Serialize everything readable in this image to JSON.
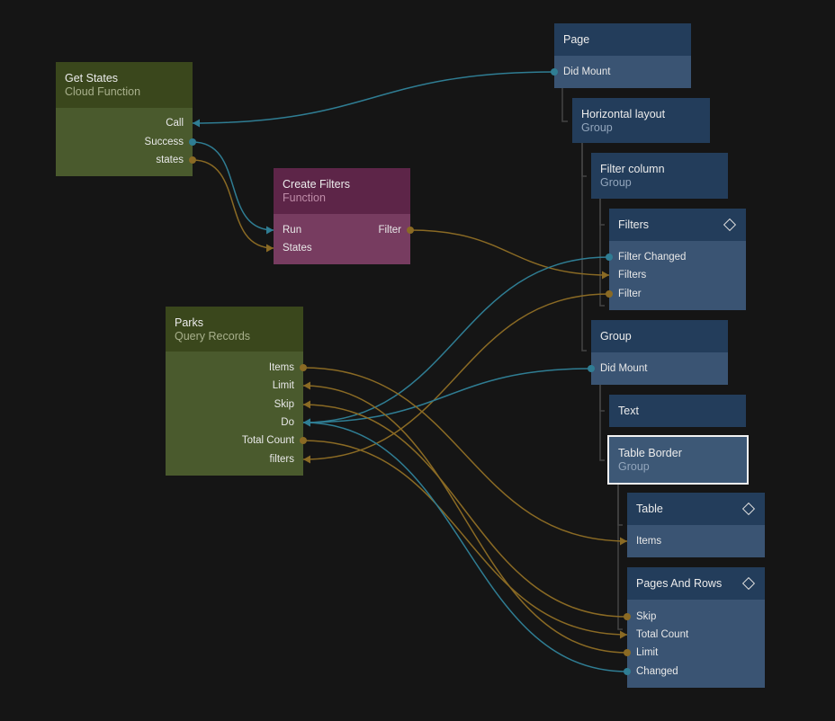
{
  "colors": {
    "signal": "#2f7d93",
    "data": "#8a6a24",
    "tree_line": "#444444"
  },
  "nodes": [
    {
      "id": "get-states",
      "title": "Get States",
      "subtitle": "Cloud Function",
      "theme": "green",
      "ports": [
        {
          "label": "Call",
          "side": "out"
        },
        {
          "label": "Success",
          "side": "out"
        },
        {
          "label": "states",
          "side": "out"
        }
      ]
    },
    {
      "id": "create-filters",
      "title": "Create Filters",
      "subtitle": "Function",
      "theme": "purple",
      "ports": [
        {
          "label": "Run",
          "side": "in"
        },
        {
          "label": "States",
          "side": "in"
        },
        {
          "label": "Filter",
          "side": "out"
        }
      ]
    },
    {
      "id": "parks",
      "title": "Parks",
      "subtitle": "Query Records",
      "theme": "green",
      "ports": [
        {
          "label": "Items",
          "side": "out"
        },
        {
          "label": "Limit",
          "side": "out"
        },
        {
          "label": "Skip",
          "side": "out"
        },
        {
          "label": "Do",
          "side": "out"
        },
        {
          "label": "Total Count",
          "side": "out"
        },
        {
          "label": "filters",
          "side": "out"
        }
      ]
    },
    {
      "id": "page",
      "title": "Page",
      "subtitle": "",
      "theme": "blue",
      "ports": [
        {
          "label": "Did Mount",
          "side": "in"
        }
      ]
    },
    {
      "id": "horizontal-layout",
      "title": "Horizontal layout",
      "subtitle": "Group",
      "theme": "blue",
      "ports": []
    },
    {
      "id": "filter-column",
      "title": "Filter column",
      "subtitle": "Group",
      "theme": "blue",
      "ports": []
    },
    {
      "id": "filters",
      "title": "Filters",
      "subtitle": "",
      "theme": "blue",
      "component": true,
      "ports": [
        {
          "label": "Filter Changed",
          "side": "in"
        },
        {
          "label": "Filters",
          "side": "in"
        },
        {
          "label": "Filter",
          "side": "in"
        }
      ]
    },
    {
      "id": "group",
      "title": "Group",
      "subtitle": "",
      "theme": "blue",
      "ports": [
        {
          "label": "Did Mount",
          "side": "in"
        }
      ]
    },
    {
      "id": "text",
      "title": "Text",
      "subtitle": "",
      "theme": "blue",
      "ports": []
    },
    {
      "id": "table-border",
      "title": "Table Border",
      "subtitle": "Group",
      "theme": "blue",
      "selected": true,
      "ports": []
    },
    {
      "id": "table",
      "title": "Table",
      "subtitle": "",
      "theme": "blue",
      "component": true,
      "ports": [
        {
          "label": "Items",
          "side": "in"
        }
      ]
    },
    {
      "id": "pages-and-rows",
      "title": "Pages And Rows",
      "subtitle": "",
      "theme": "blue",
      "component": true,
      "ports": [
        {
          "label": "Skip",
          "side": "in"
        },
        {
          "label": "Total Count",
          "side": "in"
        },
        {
          "label": "Limit",
          "side": "in"
        },
        {
          "label": "Changed",
          "side": "in"
        }
      ]
    }
  ]
}
